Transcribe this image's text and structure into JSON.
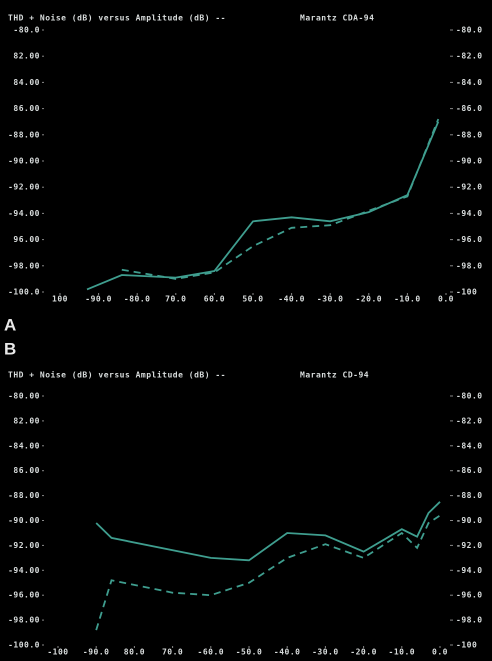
{
  "chart_data": [
    {
      "type": "line",
      "label": "A",
      "title": "THD + Noise (dB) versus Amplitude (dB) --",
      "subtitle": "Marantz CDA-94",
      "xlim": [
        -100,
        0
      ],
      "ylim": [
        -100,
        -80
      ],
      "y2lim": [
        -100,
        -80
      ],
      "xticks": [
        {
          "value": -100,
          "label": "100"
        },
        {
          "value": -90,
          "label": "-90.0"
        },
        {
          "value": -80,
          "label": "-80.0"
        },
        {
          "value": -70,
          "label": "70.0"
        },
        {
          "value": -60,
          "label": "60.0"
        },
        {
          "value": -50,
          "label": "50.0"
        },
        {
          "value": -40,
          "label": "-40.0"
        },
        {
          "value": -30,
          "label": "-30.0"
        },
        {
          "value": -20,
          "label": "-20.0"
        },
        {
          "value": -10,
          "label": "-10.0"
        },
        {
          "value": 0,
          "label": "0.0"
        }
      ],
      "yticks": [
        {
          "value": -80,
          "label": "-80.0"
        },
        {
          "value": -82,
          "label": "82.00"
        },
        {
          "value": -84,
          "label": "84.00"
        },
        {
          "value": -86,
          "label": "86.00"
        },
        {
          "value": -88,
          "label": "-88.00"
        },
        {
          "value": -90,
          "label": "-90.00"
        },
        {
          "value": -92,
          "label": "-92.00"
        },
        {
          "value": -94,
          "label": "-94.00"
        },
        {
          "value": -96,
          "label": "96.00"
        },
        {
          "value": -98,
          "label": "-98.00"
        },
        {
          "value": -100,
          "label": "-100.0"
        }
      ],
      "y2ticks": [
        {
          "value": -80,
          "label": "-80.0"
        },
        {
          "value": -82,
          "label": "-82.0"
        },
        {
          "value": -84,
          "label": "-84.0"
        },
        {
          "value": -86,
          "label": "-86.0"
        },
        {
          "value": -88,
          "label": "-88.0"
        },
        {
          "value": -90,
          "label": "-90.0"
        },
        {
          "value": -92,
          "label": "-92.0"
        },
        {
          "value": -94,
          "label": "-94.0"
        },
        {
          "value": -96,
          "label": "-96.0"
        },
        {
          "value": -98,
          "label": "-98.0"
        },
        {
          "value": -100,
          "label": "-100"
        }
      ],
      "series": [
        {
          "color": "#3f9e8f",
          "dashed": false,
          "x": [
            -93,
            -84,
            -70,
            -60,
            -50,
            -40,
            -30,
            -20,
            -10,
            -2
          ],
          "values": [
            -99.8,
            -98.7,
            -98.9,
            -98.4,
            -94.6,
            -94.3,
            -94.6,
            -93.9,
            -92.6,
            -87
          ]
        },
        {
          "color": "#3f9e8f",
          "dashed": true,
          "x": [
            -84,
            -70,
            -60,
            -50,
            -40,
            -30,
            -20,
            -10,
            -2
          ],
          "values": [
            -98.3,
            -99,
            -98.5,
            -96.5,
            -95.1,
            -94.9,
            -93.8,
            -92.7,
            -86.8
          ]
        }
      ]
    },
    {
      "type": "line",
      "label": "B",
      "title": "THD + Noise (dB) versus Amplitude (dB) --",
      "subtitle": "Marantz CD-94",
      "xlim": [
        -100,
        0
      ],
      "ylim": [
        -100,
        -80
      ],
      "y2lim": [
        -100,
        -80
      ],
      "xticks": [
        {
          "value": -100,
          "label": "-100"
        },
        {
          "value": -90,
          "label": "-90.0"
        },
        {
          "value": -80,
          "label": "80.0"
        },
        {
          "value": -70,
          "label": "70.0"
        },
        {
          "value": -60,
          "label": "-60.0"
        },
        {
          "value": -50,
          "label": "-50.0"
        },
        {
          "value": -40,
          "label": "-40.0"
        },
        {
          "value": -30,
          "label": "-30.0"
        },
        {
          "value": -20,
          "label": "-20.0"
        },
        {
          "value": -10,
          "label": "-10.0"
        },
        {
          "value": 0,
          "label": "0.0"
        }
      ],
      "yticks": [
        {
          "value": -80,
          "label": "-80.00"
        },
        {
          "value": -82,
          "label": "82.00"
        },
        {
          "value": -84,
          "label": "-84.00"
        },
        {
          "value": -86,
          "label": "86.00"
        },
        {
          "value": -88,
          "label": "-88.00"
        },
        {
          "value": -90,
          "label": "-90.00"
        },
        {
          "value": -92,
          "label": "-92.00"
        },
        {
          "value": -94,
          "label": "-94.00"
        },
        {
          "value": -96,
          "label": "-96.00"
        },
        {
          "value": -98,
          "label": "-98.00"
        },
        {
          "value": -100,
          "label": "-100.0"
        }
      ],
      "y2ticks": [
        {
          "value": -80,
          "label": "-80.0"
        },
        {
          "value": -82,
          "label": "-82.0"
        },
        {
          "value": -84,
          "label": "-84.0"
        },
        {
          "value": -86,
          "label": "-86.0"
        },
        {
          "value": -88,
          "label": "-88.0"
        },
        {
          "value": -90,
          "label": "-90.0"
        },
        {
          "value": -92,
          "label": "-92.0"
        },
        {
          "value": -94,
          "label": "-94.0"
        },
        {
          "value": -96,
          "label": "-96.0"
        },
        {
          "value": -98,
          "label": "-98.0"
        },
        {
          "value": -100,
          "label": "-100"
        }
      ],
      "series": [
        {
          "color": "#3f9e8f",
          "dashed": false,
          "x": [
            -90,
            -86,
            -60,
            -50,
            -40,
            -30,
            -20,
            -10,
            -6,
            -3,
            0
          ],
          "values": [
            -90.2,
            -91.4,
            -93,
            -93.2,
            -91,
            -91.2,
            -92.5,
            -90.7,
            -91.3,
            -89.4,
            -88.5
          ]
        },
        {
          "color": "#3f9e8f",
          "dashed": true,
          "x": [
            -90,
            -86,
            -70,
            -60,
            -50,
            -40,
            -30,
            -20,
            -10,
            -6,
            -3,
            0
          ],
          "values": [
            -98.8,
            -94.8,
            -95.8,
            -96,
            -95,
            -93,
            -91.9,
            -93,
            -91,
            -92.2,
            -90.2,
            -89.6
          ]
        }
      ]
    }
  ]
}
